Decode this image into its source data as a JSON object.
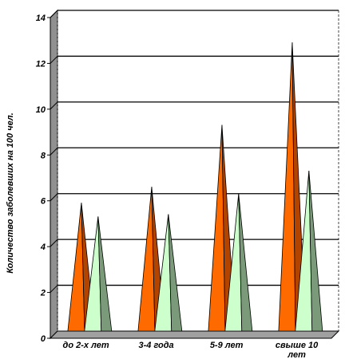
{
  "chart_data": {
    "type": "bar",
    "subtype": "3d-cone",
    "ylabel": "Количество заболевших на 100 чел.",
    "xlabel": "",
    "ylim": [
      0,
      14
    ],
    "yticks": [
      "0",
      "2",
      "4",
      "6",
      "8",
      "10",
      "12",
      "14"
    ],
    "grid": true,
    "categories": [
      {
        "lines": [
          "до 2-х лет"
        ]
      },
      {
        "lines": [
          "3-4 года"
        ]
      },
      {
        "lines": [
          "5-9 лет"
        ]
      },
      {
        "lines": [
          "свыше 10",
          "лет"
        ]
      }
    ],
    "series": [
      {
        "values": [
          5.6,
          6.3,
          9.0,
          12.6
        ],
        "color": "#ff6a00",
        "shade": "#b34400"
      },
      {
        "values": [
          5.0,
          5.1,
          6.0,
          7.0
        ],
        "color": "#ccffcc",
        "shade": "#7a9a7a"
      }
    ],
    "colors": {
      "wall": "#909090",
      "floor": "#a0a0a0",
      "grid": "#000000"
    }
  }
}
